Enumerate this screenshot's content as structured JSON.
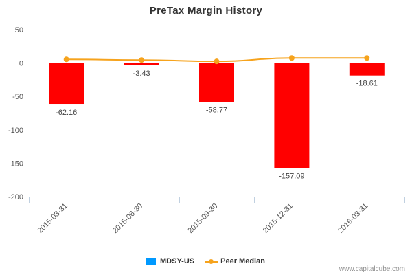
{
  "title": "PreTax Margin History",
  "credit": "www.capitalcube.com",
  "legend": {
    "company_label": "MDSY-US",
    "peer_label": "Peer Median",
    "company_color": "#0099ff",
    "peer_color": "#f6a31d"
  },
  "chart_data": {
    "type": "bar",
    "title": "PreTax Margin History",
    "xlabel": "",
    "ylabel": "",
    "categories": [
      "2015-03-31",
      "2015-06-30",
      "2015-09-30",
      "2015-12-31",
      "2016-03-31"
    ],
    "series": [
      {
        "name": "MDSY-US",
        "type": "bar",
        "color": "#ff0000",
        "values": [
          -62.16,
          -3.43,
          -58.77,
          -157.09,
          -18.61
        ],
        "data_labels": [
          "-62.16",
          "-3.43",
          "-58.77",
          "-157.09",
          "-18.61"
        ]
      },
      {
        "name": "Peer Median",
        "type": "line",
        "color": "#f6a31d",
        "values": [
          5.5,
          4.5,
          2.5,
          7.5,
          7.5
        ]
      }
    ],
    "ylim": [
      -200,
      50
    ],
    "yticks": [
      50,
      0,
      -50,
      -100,
      -150,
      -200
    ],
    "grid": false,
    "legend_position": "bottom"
  }
}
